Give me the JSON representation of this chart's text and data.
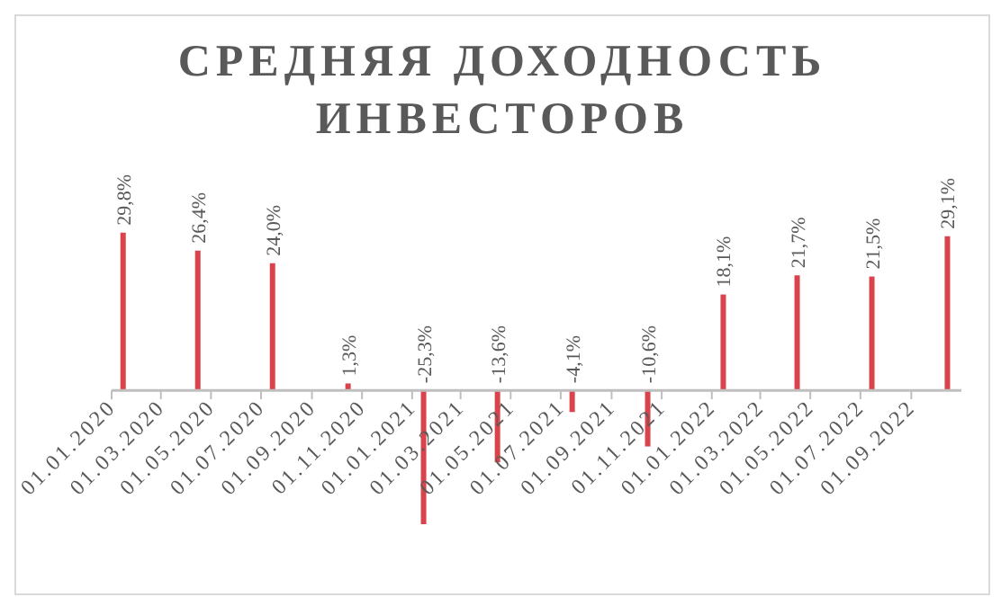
{
  "chart_data": {
    "type": "bar",
    "title": "СРЕДНЯЯ ДОХОДНОСТЬ ИНВЕСТОРОВ",
    "x": [
      "2020-01-15",
      "2020-04-15",
      "2020-07-15",
      "2020-10-15",
      "2021-01-15",
      "2021-04-15",
      "2021-07-15",
      "2021-10-15",
      "2022-01-15",
      "2022-04-15",
      "2022-07-15",
      "2022-10-15"
    ],
    "values": [
      29.8,
      26.4,
      24.0,
      1.3,
      -25.3,
      -13.6,
      -4.1,
      -10.6,
      18.1,
      21.7,
      21.5,
      29.1
    ],
    "value_labels": [
      "29,8%",
      "26,4%",
      "24,0%",
      "1,3%",
      "-25,3%",
      "-13,6%",
      "-4,1%",
      "-10,6%",
      "18,1%",
      "21,7%",
      "21,5%",
      "29,1%"
    ],
    "color": "#d9434b",
    "xlim": [
      "2020-01-01",
      "2022-11-01"
    ],
    "xticks": [
      {
        "value": "2020-01-01",
        "label": "01.01.2020"
      },
      {
        "value": "2020-03-01",
        "label": "01.03.2020"
      },
      {
        "value": "2020-05-01",
        "label": "01.05.2020"
      },
      {
        "value": "2020-07-01",
        "label": "01.07.2020"
      },
      {
        "value": "2020-09-01",
        "label": "01.09.2020"
      },
      {
        "value": "2020-11-01",
        "label": "01.11.2020"
      },
      {
        "value": "2021-01-01",
        "label": "01.01.2021"
      },
      {
        "value": "2021-03-01",
        "label": "01.03.2021"
      },
      {
        "value": "2021-05-01",
        "label": "01.05.2021"
      },
      {
        "value": "2021-07-01",
        "label": "01.07.2021"
      },
      {
        "value": "2021-09-01",
        "label": "01.09.2021"
      },
      {
        "value": "2021-11-01",
        "label": "01.11.2021"
      },
      {
        "value": "2022-01-01",
        "label": "01.01.2022"
      },
      {
        "value": "2022-03-01",
        "label": "01.03.2022"
      },
      {
        "value": "2022-05-01",
        "label": "01.05.2022"
      },
      {
        "value": "2022-07-01",
        "label": "01.07.2022"
      },
      {
        "value": "2022-09-01",
        "label": "01.09.2022"
      }
    ],
    "tick_labels": "x"
  }
}
